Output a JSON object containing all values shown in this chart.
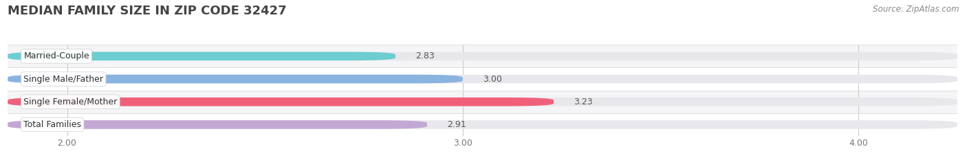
{
  "title": "MEDIAN FAMILY SIZE IN ZIP CODE 32427",
  "source": "Source: ZipAtlas.com",
  "categories": [
    "Married-Couple",
    "Single Male/Father",
    "Single Female/Mother",
    "Total Families"
  ],
  "values": [
    2.83,
    3.0,
    3.23,
    2.91
  ],
  "bar_colors": [
    "#6dcdd0",
    "#89b4e0",
    "#f0607a",
    "#c4a8d4"
  ],
  "bar_height": 0.38,
  "xlim": [
    1.85,
    4.25
  ],
  "xmin": 1.85,
  "xmax": 4.25,
  "xticks": [
    2.0,
    3.0,
    4.0
  ],
  "xtick_labels": [
    "2.00",
    "3.00",
    "4.00"
  ],
  "background_color": "#ffffff",
  "bar_bg_color": "#e8e8ec",
  "row_bg_colors": [
    "#f5f5f8",
    "#ffffff",
    "#f5f5f8",
    "#ffffff"
  ],
  "title_fontsize": 13,
  "source_fontsize": 8.5,
  "label_fontsize": 9,
  "value_fontsize": 9,
  "tick_fontsize": 9
}
